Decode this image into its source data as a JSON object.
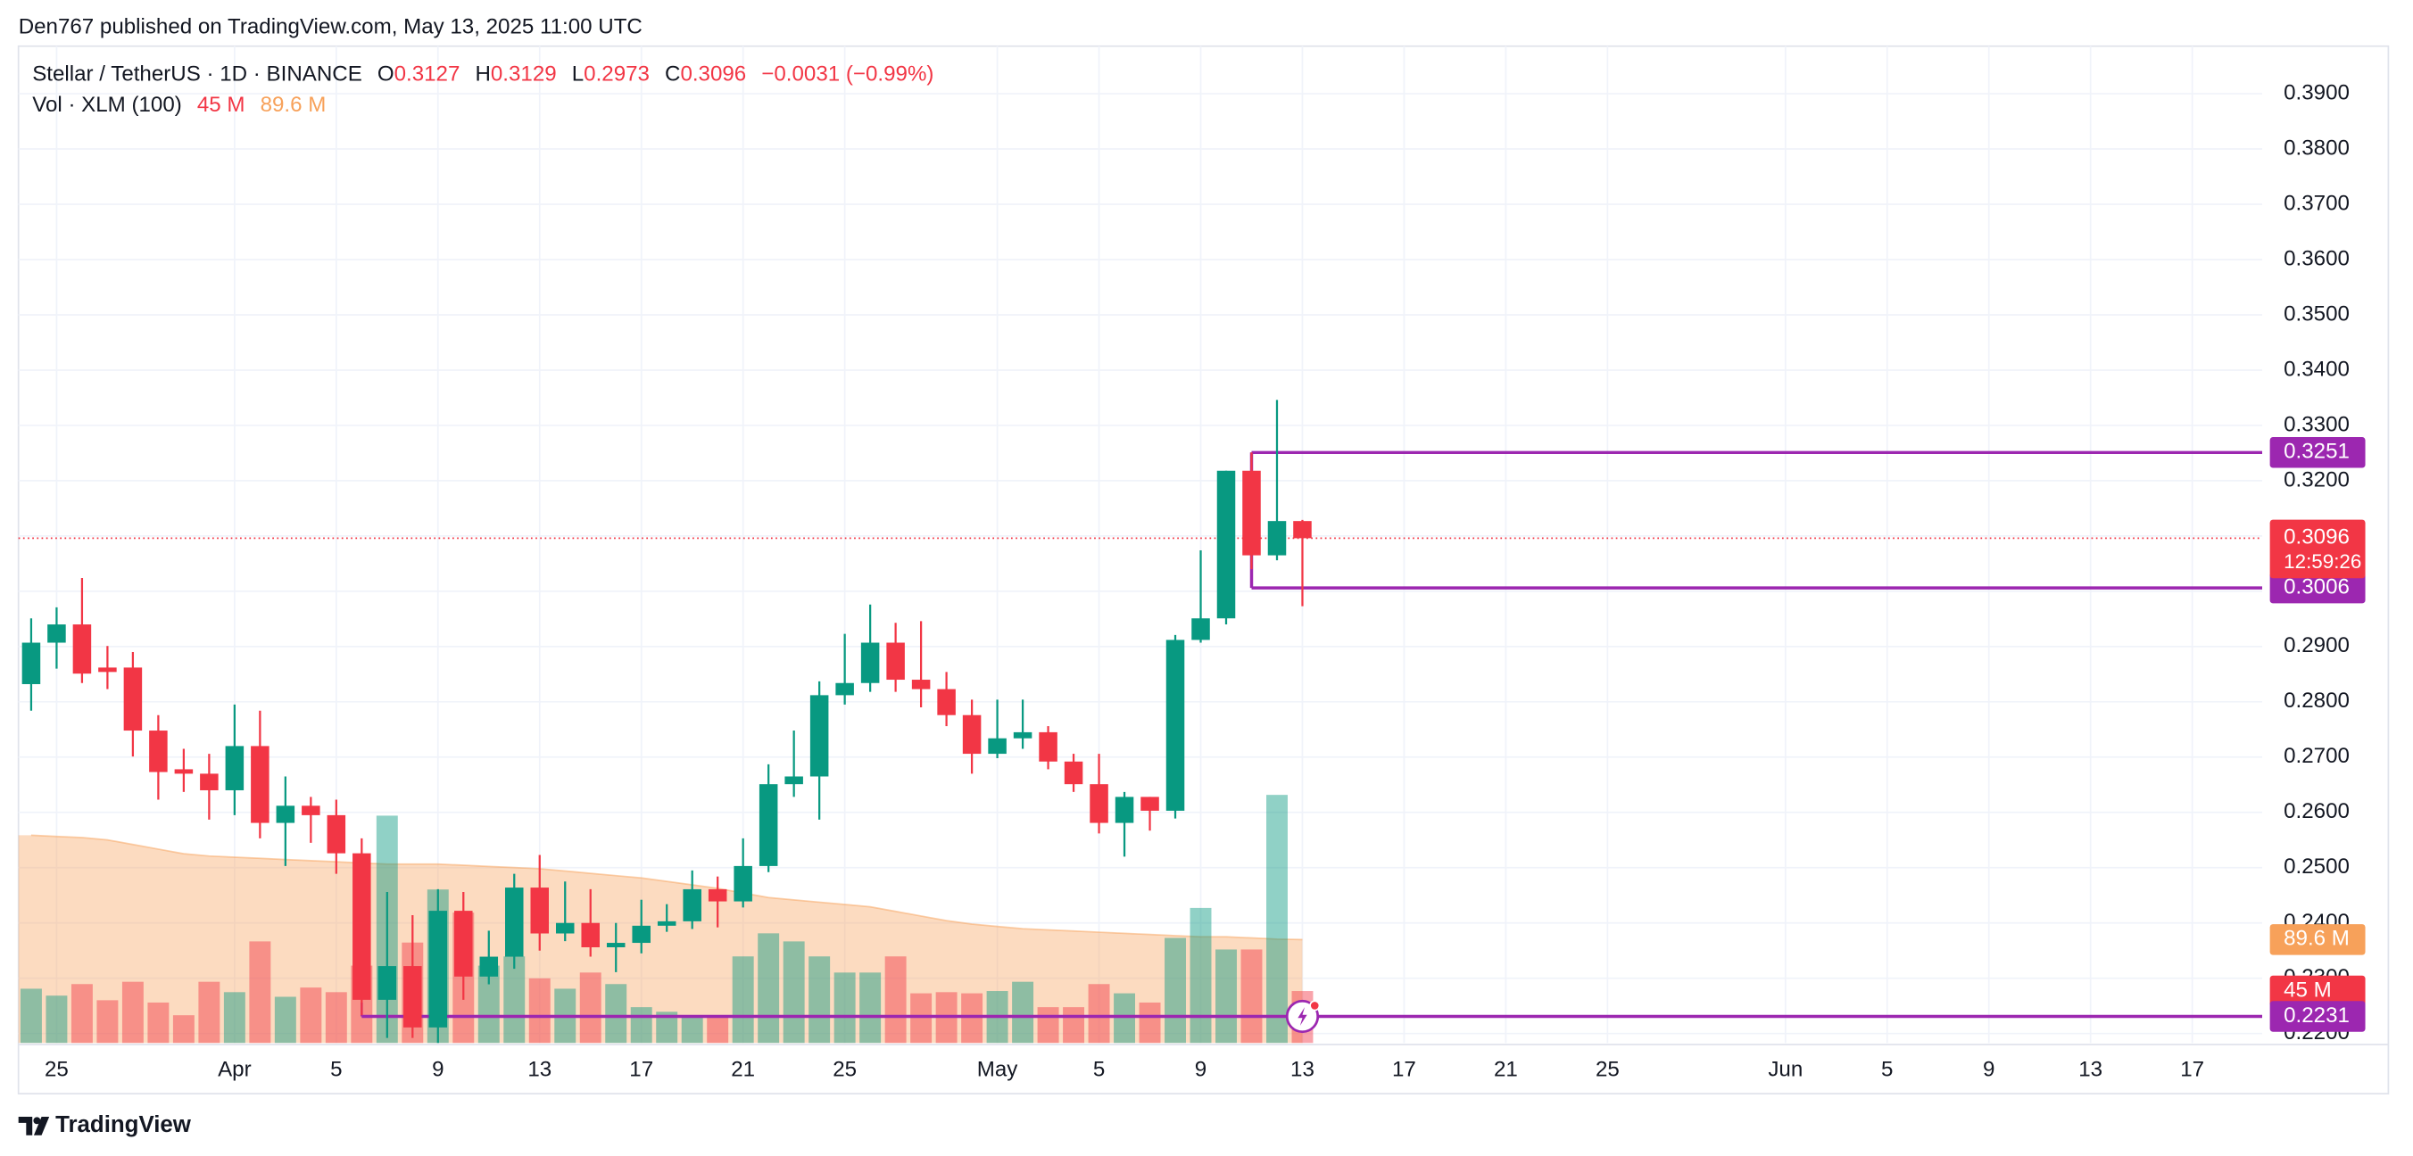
{
  "header": {
    "publisher": "Den767 published on TradingView.com, May 13, 2025 11:00 UTC"
  },
  "footer": {
    "brand": "TradingView"
  },
  "chart_data": {
    "type": "candlestick",
    "symbol": "Stellar / TetherUS · 1D · BINANCE",
    "legend": {
      "items": [
        {
          "key": "O",
          "value": "0.3127"
        },
        {
          "key": "H",
          "value": "0.3129"
        },
        {
          "key": "L",
          "value": "0.2973"
        },
        {
          "key": "C",
          "value": "0.3096"
        }
      ],
      "change": "−0.0031 (−0.99%)",
      "volume_title": "Vol · XLM (100)"
    },
    "up_color": "#089981",
    "down_color": "#f23645",
    "level_color": "#9c27b0",
    "ma_color": "#f7a15a",
    "x": [
      "2025-03-24",
      "2025-03-25",
      "2025-03-26",
      "2025-03-27",
      "2025-03-28",
      "2025-03-29",
      "2025-03-30",
      "2025-03-31",
      "2025-04-01",
      "2025-04-02",
      "2025-04-03",
      "2025-04-04",
      "2025-04-05",
      "2025-04-06",
      "2025-04-07",
      "2025-04-08",
      "2025-04-09",
      "2025-04-10",
      "2025-04-11",
      "2025-04-12",
      "2025-04-13",
      "2025-04-14",
      "2025-04-15",
      "2025-04-16",
      "2025-04-17",
      "2025-04-18",
      "2025-04-19",
      "2025-04-20",
      "2025-04-21",
      "2025-04-22",
      "2025-04-23",
      "2025-04-24",
      "2025-04-25",
      "2025-04-26",
      "2025-04-27",
      "2025-04-28",
      "2025-04-29",
      "2025-04-30",
      "2025-05-01",
      "2025-05-02",
      "2025-05-03",
      "2025-05-04",
      "2025-05-05",
      "2025-05-06",
      "2025-05-07",
      "2025-05-08",
      "2025-05-09",
      "2025-05-10",
      "2025-05-11",
      "2025-05-12",
      "2025-05-13"
    ],
    "open": [
      0.2832,
      0.2907,
      0.294,
      0.2862,
      0.2862,
      0.2748,
      0.2678,
      0.267,
      0.264,
      0.272,
      0.2581,
      0.2612,
      0.2595,
      0.2526,
      0.2261,
      0.2322,
      0.2211,
      0.2422,
      0.2303,
      0.2339,
      0.2464,
      0.2381,
      0.24,
      0.2356,
      0.2364,
      0.2395,
      0.2403,
      0.2461,
      0.2439,
      0.2503,
      0.2651,
      0.2665,
      0.2812,
      0.2834,
      0.2907,
      0.284,
      0.2823,
      0.2776,
      0.2706,
      0.2734,
      0.2745,
      0.2692,
      0.2651,
      0.2581,
      0.2628,
      0.2603,
      0.2912,
      0.2951,
      0.3218,
      0.3065,
      0.3127
    ],
    "high": [
      0.2951,
      0.2971,
      0.3024,
      0.2901,
      0.289,
      0.2776,
      0.2715,
      0.2706,
      0.2795,
      0.2784,
      0.2665,
      0.2628,
      0.2623,
      0.2553,
      0.2456,
      0.2414,
      0.2461,
      0.2456,
      0.2386,
      0.2489,
      0.2523,
      0.2475,
      0.2461,
      0.24,
      0.2442,
      0.2434,
      0.2495,
      0.2484,
      0.2553,
      0.2687,
      0.2748,
      0.2837,
      0.2923,
      0.2976,
      0.2943,
      0.2946,
      0.2854,
      0.2804,
      0.2804,
      0.2804,
      0.2756,
      0.2706,
      0.2706,
      0.2637,
      0.2628,
      0.2921,
      0.3074,
      0.3218,
      0.3251,
      0.3346,
      0.3129
    ],
    "low": [
      0.2784,
      0.286,
      0.2834,
      0.2823,
      0.2701,
      0.2623,
      0.2637,
      0.2587,
      0.2595,
      0.2553,
      0.2503,
      0.2545,
      0.2489,
      0.2233,
      0.2192,
      0.2192,
      0.2183,
      0.2261,
      0.2289,
      0.2317,
      0.235,
      0.2367,
      0.2339,
      0.2311,
      0.2345,
      0.2384,
      0.2389,
      0.2392,
      0.2428,
      0.2492,
      0.2628,
      0.2587,
      0.2795,
      0.2818,
      0.2818,
      0.279,
      0.2756,
      0.267,
      0.2698,
      0.2715,
      0.2678,
      0.2637,
      0.2562,
      0.252,
      0.2567,
      0.2589,
      0.2907,
      0.294,
      0.304,
      0.3056,
      0.2973
    ],
    "close": [
      0.2907,
      0.294,
      0.2851,
      0.2854,
      0.2748,
      0.2673,
      0.267,
      0.264,
      0.272,
      0.2581,
      0.2612,
      0.2595,
      0.2526,
      0.2261,
      0.2322,
      0.2211,
      0.2422,
      0.2303,
      0.2339,
      0.2464,
      0.2381,
      0.24,
      0.2356,
      0.2364,
      0.2395,
      0.2403,
      0.2461,
      0.2439,
      0.2503,
      0.2651,
      0.2665,
      0.2812,
      0.2834,
      0.2907,
      0.284,
      0.2823,
      0.2776,
      0.2706,
      0.2734,
      0.2745,
      0.2692,
      0.2651,
      0.2581,
      0.2628,
      0.2603,
      0.2912,
      0.2951,
      0.3218,
      0.3065,
      0.3127,
      0.3096
    ],
    "volume": [
      47,
      41,
      51,
      37,
      53,
      35,
      24,
      53,
      44,
      88,
      40,
      48,
      44,
      67,
      197,
      87,
      133,
      113,
      67,
      75,
      56,
      47,
      61,
      51,
      31,
      27,
      24,
      24,
      75,
      95,
      88,
      75,
      61,
      61,
      75,
      43,
      44,
      43,
      45,
      53,
      31,
      31,
      51,
      43,
      35,
      91,
      117,
      81,
      81,
      215,
      45
    ],
    "volume_ma": [
      180,
      179,
      178,
      176,
      172,
      168,
      164,
      162,
      161,
      160,
      159,
      158,
      157,
      156,
      155,
      155,
      155,
      154,
      153,
      152,
      151,
      149,
      147,
      145,
      143,
      140,
      137,
      134,
      130,
      126,
      124,
      122,
      120,
      118,
      114,
      110,
      106,
      103,
      101,
      99,
      98,
      97,
      96,
      95,
      94,
      93,
      92,
      92,
      91,
      90,
      89.6
    ],
    "xlim": [
      "2025-03-23T12:00",
      "2025-06-19T18:00"
    ],
    "ylim": [
      0.2183,
      0.3986
    ],
    "vlim": [
      0,
      864
    ],
    "yticks": [
      {
        "value": 0.22,
        "label": "0.2200"
      },
      {
        "value": 0.23,
        "label": "0.2300"
      },
      {
        "value": 0.24,
        "label": "0.2400"
      },
      {
        "value": 0.25,
        "label": "0.2500"
      },
      {
        "value": 0.26,
        "label": "0.2600"
      },
      {
        "value": 0.27,
        "label": "0.2700"
      },
      {
        "value": 0.28,
        "label": "0.2800"
      },
      {
        "value": 0.29,
        "label": "0.2900"
      },
      {
        "value": 0.3,
        "label": "0.3000"
      },
      {
        "value": 0.31,
        "label": "0.3100"
      },
      {
        "value": 0.32,
        "label": "0.3200"
      },
      {
        "value": 0.33,
        "label": "0.3300"
      },
      {
        "value": 0.34,
        "label": "0.3400"
      },
      {
        "value": 0.35,
        "label": "0.3500"
      },
      {
        "value": 0.36,
        "label": "0.3600"
      },
      {
        "value": 0.37,
        "label": "0.3700"
      },
      {
        "value": 0.38,
        "label": "0.3800"
      },
      {
        "value": 0.39,
        "label": "0.3900"
      }
    ],
    "xticks": [
      {
        "value": "2025-03-25",
        "label": "25"
      },
      {
        "value": "2025-04-01",
        "label": "Apr"
      },
      {
        "value": "2025-04-05",
        "label": "5"
      },
      {
        "value": "2025-04-09",
        "label": "9"
      },
      {
        "value": "2025-04-13",
        "label": "13"
      },
      {
        "value": "2025-04-17",
        "label": "17"
      },
      {
        "value": "2025-04-21",
        "label": "21"
      },
      {
        "value": "2025-04-25",
        "label": "25"
      },
      {
        "value": "2025-05-01",
        "label": "May"
      },
      {
        "value": "2025-05-05",
        "label": "5"
      },
      {
        "value": "2025-05-09",
        "label": "9"
      },
      {
        "value": "2025-05-13",
        "label": "13"
      },
      {
        "value": "2025-05-17",
        "label": "17"
      },
      {
        "value": "2025-05-21",
        "label": "21"
      },
      {
        "value": "2025-05-25",
        "label": "25"
      },
      {
        "value": "2025-06-01",
        "label": "Jun"
      },
      {
        "value": "2025-06-05",
        "label": "5"
      },
      {
        "value": "2025-06-09",
        "label": "9"
      },
      {
        "value": "2025-06-13",
        "label": "13"
      },
      {
        "value": "2025-06-17",
        "label": "17"
      }
    ],
    "grid": true,
    "levels": [
      {
        "value": 0.3251,
        "start": "2025-05-11"
      },
      {
        "value": 0.3006,
        "start": "2025-05-11"
      },
      {
        "value": 0.2231,
        "start": "2025-04-06"
      }
    ],
    "last": {
      "value": 0.3096,
      "countdown": "12:59:26"
    },
    "volume_badges": [
      {
        "value": 89.6,
        "label": "89.6 M",
        "color": "#f7a15a"
      },
      {
        "value": 45,
        "label": "45 M",
        "color": "#f23645"
      }
    ]
  }
}
